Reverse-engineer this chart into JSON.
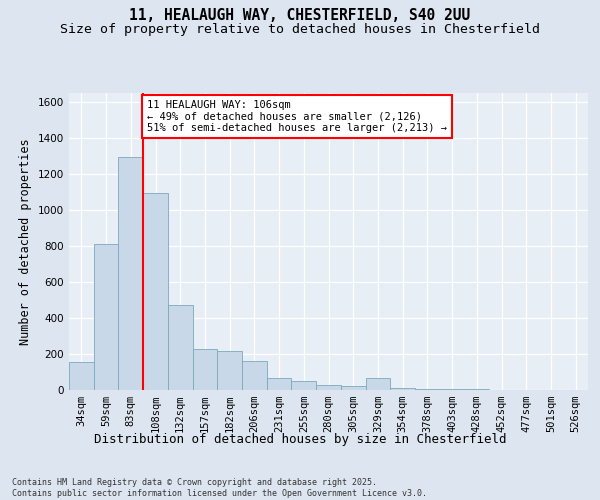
{
  "title_line1": "11, HEALAUGH WAY, CHESTERFIELD, S40 2UU",
  "title_line2": "Size of property relative to detached houses in Chesterfield",
  "xlabel": "Distribution of detached houses by size in Chesterfield",
  "ylabel": "Number of detached properties",
  "categories": [
    "34sqm",
    "59sqm",
    "83sqm",
    "108sqm",
    "132sqm",
    "157sqm",
    "182sqm",
    "206sqm",
    "231sqm",
    "255sqm",
    "280sqm",
    "305sqm",
    "329sqm",
    "354sqm",
    "378sqm",
    "403sqm",
    "428sqm",
    "452sqm",
    "477sqm",
    "501sqm",
    "526sqm"
  ],
  "values": [
    155,
    810,
    1290,
    1090,
    470,
    225,
    215,
    160,
    65,
    50,
    30,
    20,
    65,
    10,
    5,
    5,
    5,
    2,
    2,
    2,
    2
  ],
  "bar_color": "#c8d8e8",
  "bar_edge_color": "#7aaabb",
  "vline_x_index": 3,
  "vline_color": "red",
  "annotation_text": "11 HEALAUGH WAY: 106sqm\n← 49% of detached houses are smaller (2,126)\n51% of semi-detached houses are larger (2,213) →",
  "annotation_box_color": "white",
  "annotation_box_edge_color": "red",
  "ylim": [
    0,
    1650
  ],
  "yticks": [
    0,
    200,
    400,
    600,
    800,
    1000,
    1200,
    1400,
    1600
  ],
  "footer_text": "Contains HM Land Registry data © Crown copyright and database right 2025.\nContains public sector information licensed under the Open Government Licence v3.0.",
  "bg_color": "#dde6f0",
  "plot_bg_color": "#e8eef5",
  "grid_color": "white",
  "title_fontsize": 10.5,
  "subtitle_fontsize": 9.5,
  "axis_label_fontsize": 8.5,
  "tick_fontsize": 7.5,
  "annotation_fontsize": 7.5,
  "footer_fontsize": 6.0
}
